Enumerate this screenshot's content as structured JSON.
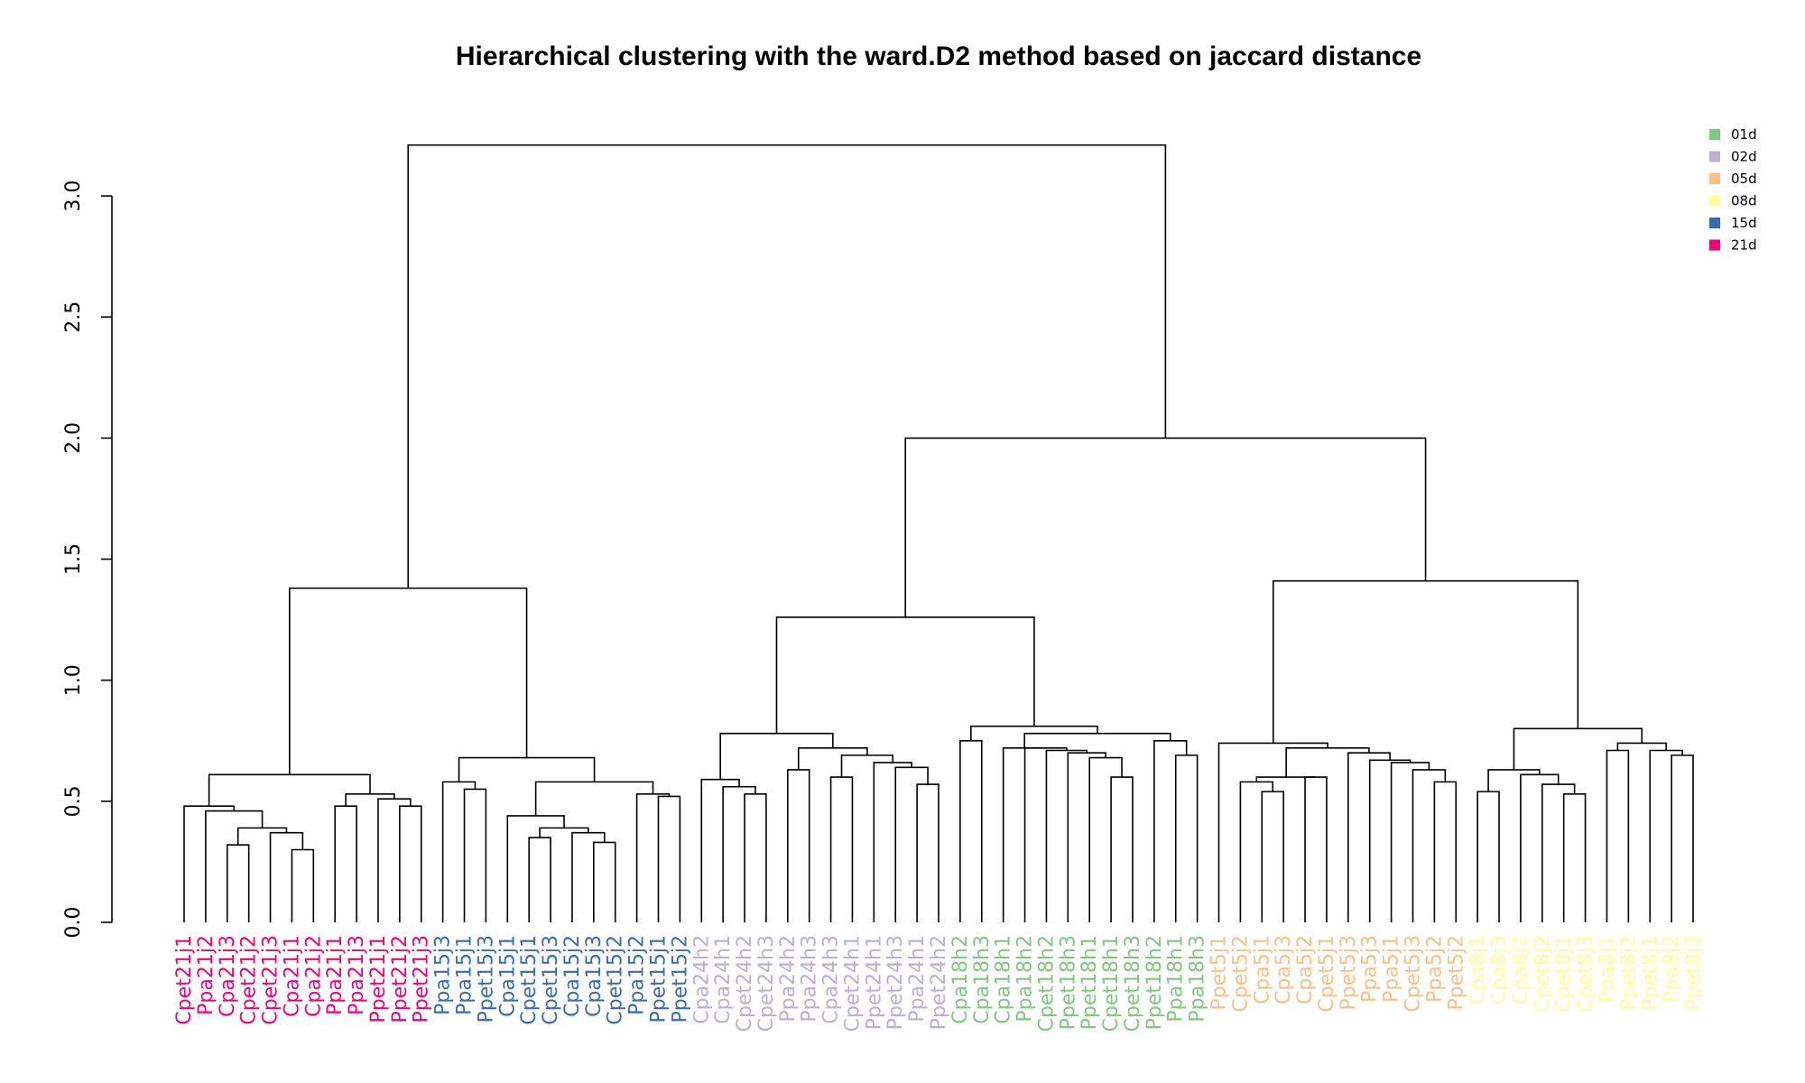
{
  "chart_data": {
    "type": "dendrogram",
    "title": "Hierarchical clustering with the ward.D2 method based on jaccard distance",
    "ylim": [
      0,
      3.2
    ],
    "y_ticks": [
      {
        "value": 0,
        "label": "0.0"
      },
      {
        "value": 0.5,
        "label": "0.5"
      },
      {
        "value": 1,
        "label": "1.0"
      },
      {
        "value": 1.5,
        "label": "1.5"
      },
      {
        "value": 2,
        "label": "2.0"
      },
      {
        "value": 2.5,
        "label": "2.5"
      },
      {
        "value": 3,
        "label": "3.0"
      }
    ],
    "legend": [
      {
        "label": "01d",
        "color": "#7fc97f"
      },
      {
        "label": "02d",
        "color": "#beaed4"
      },
      {
        "label": "05d",
        "color": "#fdc086"
      },
      {
        "label": "08d",
        "color": "#ffff99"
      },
      {
        "label": "15d",
        "color": "#386cb0"
      },
      {
        "label": "21d",
        "color": "#f0027f"
      }
    ],
    "leaves": [
      {
        "label": "Cpet21j1",
        "group": "21d"
      },
      {
        "label": "Ppa21j2",
        "group": "21d"
      },
      {
        "label": "Cpa21j3",
        "group": "21d"
      },
      {
        "label": "Cpet21j2",
        "group": "21d"
      },
      {
        "label": "Cpet21j3",
        "group": "21d"
      },
      {
        "label": "Cpa21j1",
        "group": "21d"
      },
      {
        "label": "Cpa21j2",
        "group": "21d"
      },
      {
        "label": "Ppa21j1",
        "group": "21d"
      },
      {
        "label": "Ppa21j3",
        "group": "21d"
      },
      {
        "label": "Ppet21j1",
        "group": "21d"
      },
      {
        "label": "Ppet21j2",
        "group": "21d"
      },
      {
        "label": "Ppet21j3",
        "group": "21d"
      },
      {
        "label": "Ppa15j3",
        "group": "15d"
      },
      {
        "label": "Ppa15j1",
        "group": "15d"
      },
      {
        "label": "Ppet15j3",
        "group": "15d"
      },
      {
        "label": "Cpa15j1",
        "group": "15d"
      },
      {
        "label": "Cpet15j1",
        "group": "15d"
      },
      {
        "label": "Cpet15j3",
        "group": "15d"
      },
      {
        "label": "Cpa15j2",
        "group": "15d"
      },
      {
        "label": "Cpa15j3",
        "group": "15d"
      },
      {
        "label": "Cpet15j2",
        "group": "15d"
      },
      {
        "label": "Ppa15j2",
        "group": "15d"
      },
      {
        "label": "Ppet15j1",
        "group": "15d"
      },
      {
        "label": "Ppet15j2",
        "group": "15d"
      },
      {
        "label": "Cpa24h2",
        "group": "02d"
      },
      {
        "label": "Cpa24h1",
        "group": "02d"
      },
      {
        "label": "Cpet24h2",
        "group": "02d"
      },
      {
        "label": "Cpet24h3",
        "group": "02d"
      },
      {
        "label": "Ppa24h2",
        "group": "02d"
      },
      {
        "label": "Ppa24h3",
        "group": "02d"
      },
      {
        "label": "Cpa24h3",
        "group": "02d"
      },
      {
        "label": "Cpet24h1",
        "group": "02d"
      },
      {
        "label": "Ppet24h1",
        "group": "02d"
      },
      {
        "label": "Ppet24h3",
        "group": "02d"
      },
      {
        "label": "Ppa24h1",
        "group": "02d"
      },
      {
        "label": "Ppet24h2",
        "group": "02d"
      },
      {
        "label": "Cpa18h2",
        "group": "01d"
      },
      {
        "label": "Cpa18h3",
        "group": "01d"
      },
      {
        "label": "Cpa18h1",
        "group": "01d"
      },
      {
        "label": "Ppa18h2",
        "group": "01d"
      },
      {
        "label": "Cpet18h2",
        "group": "01d"
      },
      {
        "label": "Ppet18h3",
        "group": "01d"
      },
      {
        "label": "Ppet18h1",
        "group": "01d"
      },
      {
        "label": "Cpet18h1",
        "group": "01d"
      },
      {
        "label": "Cpet18h3",
        "group": "01d"
      },
      {
        "label": "Ppet18h2",
        "group": "01d"
      },
      {
        "label": "Ppa18h1",
        "group": "01d"
      },
      {
        "label": "Ppa18h3",
        "group": "01d"
      },
      {
        "label": "Ppet5j1",
        "group": "05d"
      },
      {
        "label": "Cpet5j2",
        "group": "05d"
      },
      {
        "label": "Cpa5j1",
        "group": "05d"
      },
      {
        "label": "Cpa5j3",
        "group": "05d"
      },
      {
        "label": "Cpa5j2",
        "group": "05d"
      },
      {
        "label": "Cpet5j1",
        "group": "05d"
      },
      {
        "label": "Ppet5j3",
        "group": "05d"
      },
      {
        "label": "Ppa5j3",
        "group": "05d"
      },
      {
        "label": "Ppa5j1",
        "group": "05d"
      },
      {
        "label": "Cpet5j3",
        "group": "05d"
      },
      {
        "label": "Ppa5j2",
        "group": "05d"
      },
      {
        "label": "Ppet5j2",
        "group": "05d"
      },
      {
        "label": "Cpa8j1",
        "group": "08d"
      },
      {
        "label": "Cpa8j3",
        "group": "08d"
      },
      {
        "label": "Cpa8j2",
        "group": "08d"
      },
      {
        "label": "Cpet8j2",
        "group": "08d"
      },
      {
        "label": "Cpet8j1",
        "group": "08d"
      },
      {
        "label": "Cpet8j3",
        "group": "08d"
      },
      {
        "label": "Ppa8j1",
        "group": "08d"
      },
      {
        "label": "Ppet8j2",
        "group": "08d"
      },
      {
        "label": "Ppet8j1",
        "group": "08d"
      },
      {
        "label": "Ppa8j2",
        "group": "08d"
      },
      {
        "label": "Ppet8j3",
        "group": "08d"
      }
    ],
    "merges": [
      {
        "left": 2,
        "right": 3,
        "height": 0.32
      },
      {
        "left": 5,
        "right": 6,
        "height": 0.3
      },
      {
        "left": -5,
        "right": -2,
        "height": 0.37
      },
      {
        "left": -1,
        "right": -3,
        "height": 0.39
      },
      {
        "left": 1,
        "right": -4,
        "height": 0.46
      },
      {
        "left": 0,
        "right": -5,
        "height": 0.48
      },
      {
        "left": 10,
        "right": 11,
        "height": 0.48
      },
      {
        "left": 9,
        "right": -7,
        "height": 0.51
      },
      {
        "left": 7,
        "right": 8,
        "height": 0.48
      },
      {
        "left": -9,
        "right": -8,
        "height": 0.53
      },
      {
        "left": -6,
        "right": -10,
        "height": 0.61
      },
      {
        "left": 13,
        "right": 14,
        "height": 0.55
      },
      {
        "left": 12,
        "right": -12,
        "height": 0.58
      },
      {
        "left": 16,
        "right": 17,
        "height": 0.35
      },
      {
        "left": 19,
        "right": 20,
        "height": 0.33
      },
      {
        "left": 18,
        "right": -15,
        "height": 0.37
      },
      {
        "left": -14,
        "right": -16,
        "height": 0.39
      },
      {
        "left": 15,
        "right": -17,
        "height": 0.44
      },
      {
        "left": 22,
        "right": 23,
        "height": 0.52
      },
      {
        "left": 21,
        "right": -19,
        "height": 0.53
      },
      {
        "left": -18,
        "right": -20,
        "height": 0.58
      },
      {
        "left": -13,
        "right": -21,
        "height": 0.68
      },
      {
        "left": -11,
        "right": -22,
        "height": 1.38
      },
      {
        "left": 26,
        "right": 27,
        "height": 0.53
      },
      {
        "left": 25,
        "right": -24,
        "height": 0.56
      },
      {
        "left": 24,
        "right": -25,
        "height": 0.59
      },
      {
        "left": 34,
        "right": 35,
        "height": 0.57
      },
      {
        "left": 33,
        "right": -27,
        "height": 0.64
      },
      {
        "left": 32,
        "right": -28,
        "height": 0.66
      },
      {
        "left": 31,
        "right": -29,
        "height": 0.69
      },
      {
        "left": 30,
        "right": -30,
        "height": 0.6
      },
      {
        "left": -31,
        "right": -31,
        "height": 0.0
      },
      {
        "left": 28,
        "right": 29,
        "height": 0.63
      },
      {
        "left": -33,
        "right": -32,
        "height": 0.72
      },
      {
        "left": -26,
        "right": -34,
        "height": 0.78
      },
      {
        "left": 43,
        "right": 44,
        "height": 0.6
      },
      {
        "left": 42,
        "right": -36,
        "height": 0.68
      },
      {
        "left": 41,
        "right": -37,
        "height": 0.7
      },
      {
        "left": 40,
        "right": -38,
        "height": 0.72
      },
      {
        "left": 39,
        "right": -39,
        "height": 0.72
      },
      {
        "left": 38,
        "right": -40,
        "height": 0.72
      },
      {
        "left": 46,
        "right": 47,
        "height": 0.69
      },
      {
        "left": 45,
        "right": -42,
        "height": 0.75
      },
      {
        "left": -41,
        "right": -43,
        "height": 0.78
      },
      {
        "left": 37,
        "right": -44,
        "height": 0.81
      },
      {
        "left": 36,
        "right": -45,
        "height": 0.75
      },
      {
        "left": -35,
        "right": -46,
        "height": 1.26
      }
    ]
  }
}
